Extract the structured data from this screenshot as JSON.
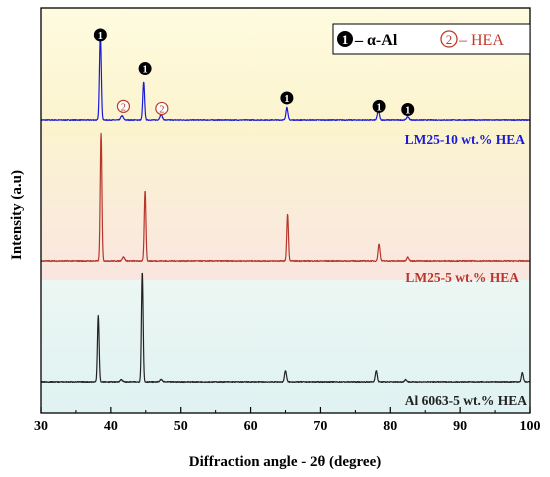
{
  "chart_data": {
    "type": "line",
    "xlabel": "Diffraction angle - 2θ (degree)",
    "ylabel": "Intensity (a.u)",
    "xlim": [
      30,
      100
    ],
    "x_ticks": [
      30,
      40,
      50,
      60,
      70,
      80,
      90,
      100
    ],
    "grid": false,
    "legend": {
      "placement": "top-right",
      "entries": [
        {
          "marker": "1",
          "text": "– α-Al",
          "marker_style": "filled-circle",
          "color": "#000000"
        },
        {
          "marker": "2",
          "text": "– HEA",
          "marker_style": "open-circle",
          "color": "#c0392b"
        }
      ]
    },
    "series": [
      {
        "name": "LM25-10 wt.% HEA",
        "color": "#1a1adb",
        "band_color": "#fbf6d2",
        "baseline": 0.12,
        "noise": 0.004,
        "peaks": [
          {
            "x": 38.5,
            "h": 0.82,
            "w": 0.13
          },
          {
            "x": 41.6,
            "h": 0.04,
            "w": 0.18
          },
          {
            "x": 44.7,
            "h": 0.36,
            "w": 0.13
          },
          {
            "x": 47.2,
            "h": 0.05,
            "w": 0.18
          },
          {
            "x": 65.2,
            "h": 0.12,
            "w": 0.14
          },
          {
            "x": 78.3,
            "h": 0.09,
            "w": 0.15
          },
          {
            "x": 82.5,
            "h": 0.03,
            "w": 0.18
          }
        ],
        "markers": [
          {
            "x": 38.5,
            "y": 0.93,
            "label": "1",
            "kind": "alpha-Al"
          },
          {
            "x": 44.9,
            "y": 0.61,
            "label": "1",
            "kind": "alpha-Al"
          },
          {
            "x": 41.8,
            "y": 0.25,
            "label": "2",
            "kind": "HEA"
          },
          {
            "x": 47.3,
            "y": 0.23,
            "label": "2",
            "kind": "HEA"
          },
          {
            "x": 65.2,
            "y": 0.33,
            "label": "1",
            "kind": "alpha-Al"
          },
          {
            "x": 78.4,
            "y": 0.25,
            "label": "1",
            "kind": "alpha-Al"
          },
          {
            "x": 82.5,
            "y": 0.22,
            "label": "1",
            "kind": "alpha-Al"
          }
        ]
      },
      {
        "name": "LM25-5 wt.% HEA",
        "color": "#b8352c",
        "band_color": "#fbeee6",
        "baseline": 0.12,
        "noise": 0.004,
        "peaks": [
          {
            "x": 38.6,
            "h": 0.98,
            "w": 0.12
          },
          {
            "x": 41.8,
            "h": 0.03,
            "w": 0.18
          },
          {
            "x": 44.9,
            "h": 0.54,
            "w": 0.12
          },
          {
            "x": 65.3,
            "h": 0.36,
            "w": 0.12
          },
          {
            "x": 78.4,
            "h": 0.13,
            "w": 0.14
          },
          {
            "x": 82.5,
            "h": 0.03,
            "w": 0.16
          }
        ],
        "markers": []
      },
      {
        "name": "Al 6063-5 wt.% HEA",
        "color": "#222222",
        "band_color": "#e6f5f2",
        "baseline": 0.14,
        "noise": 0.004,
        "peaks": [
          {
            "x": 38.2,
            "h": 0.58,
            "w": 0.12
          },
          {
            "x": 41.5,
            "h": 0.02,
            "w": 0.18
          },
          {
            "x": 44.5,
            "h": 0.96,
            "w": 0.12
          },
          {
            "x": 47.2,
            "h": 0.02,
            "w": 0.18
          },
          {
            "x": 65.0,
            "h": 0.1,
            "w": 0.14
          },
          {
            "x": 78.0,
            "h": 0.1,
            "w": 0.14
          },
          {
            "x": 82.2,
            "h": 0.02,
            "w": 0.16
          },
          {
            "x": 98.9,
            "h": 0.08,
            "w": 0.14
          }
        ],
        "markers": []
      }
    ]
  }
}
